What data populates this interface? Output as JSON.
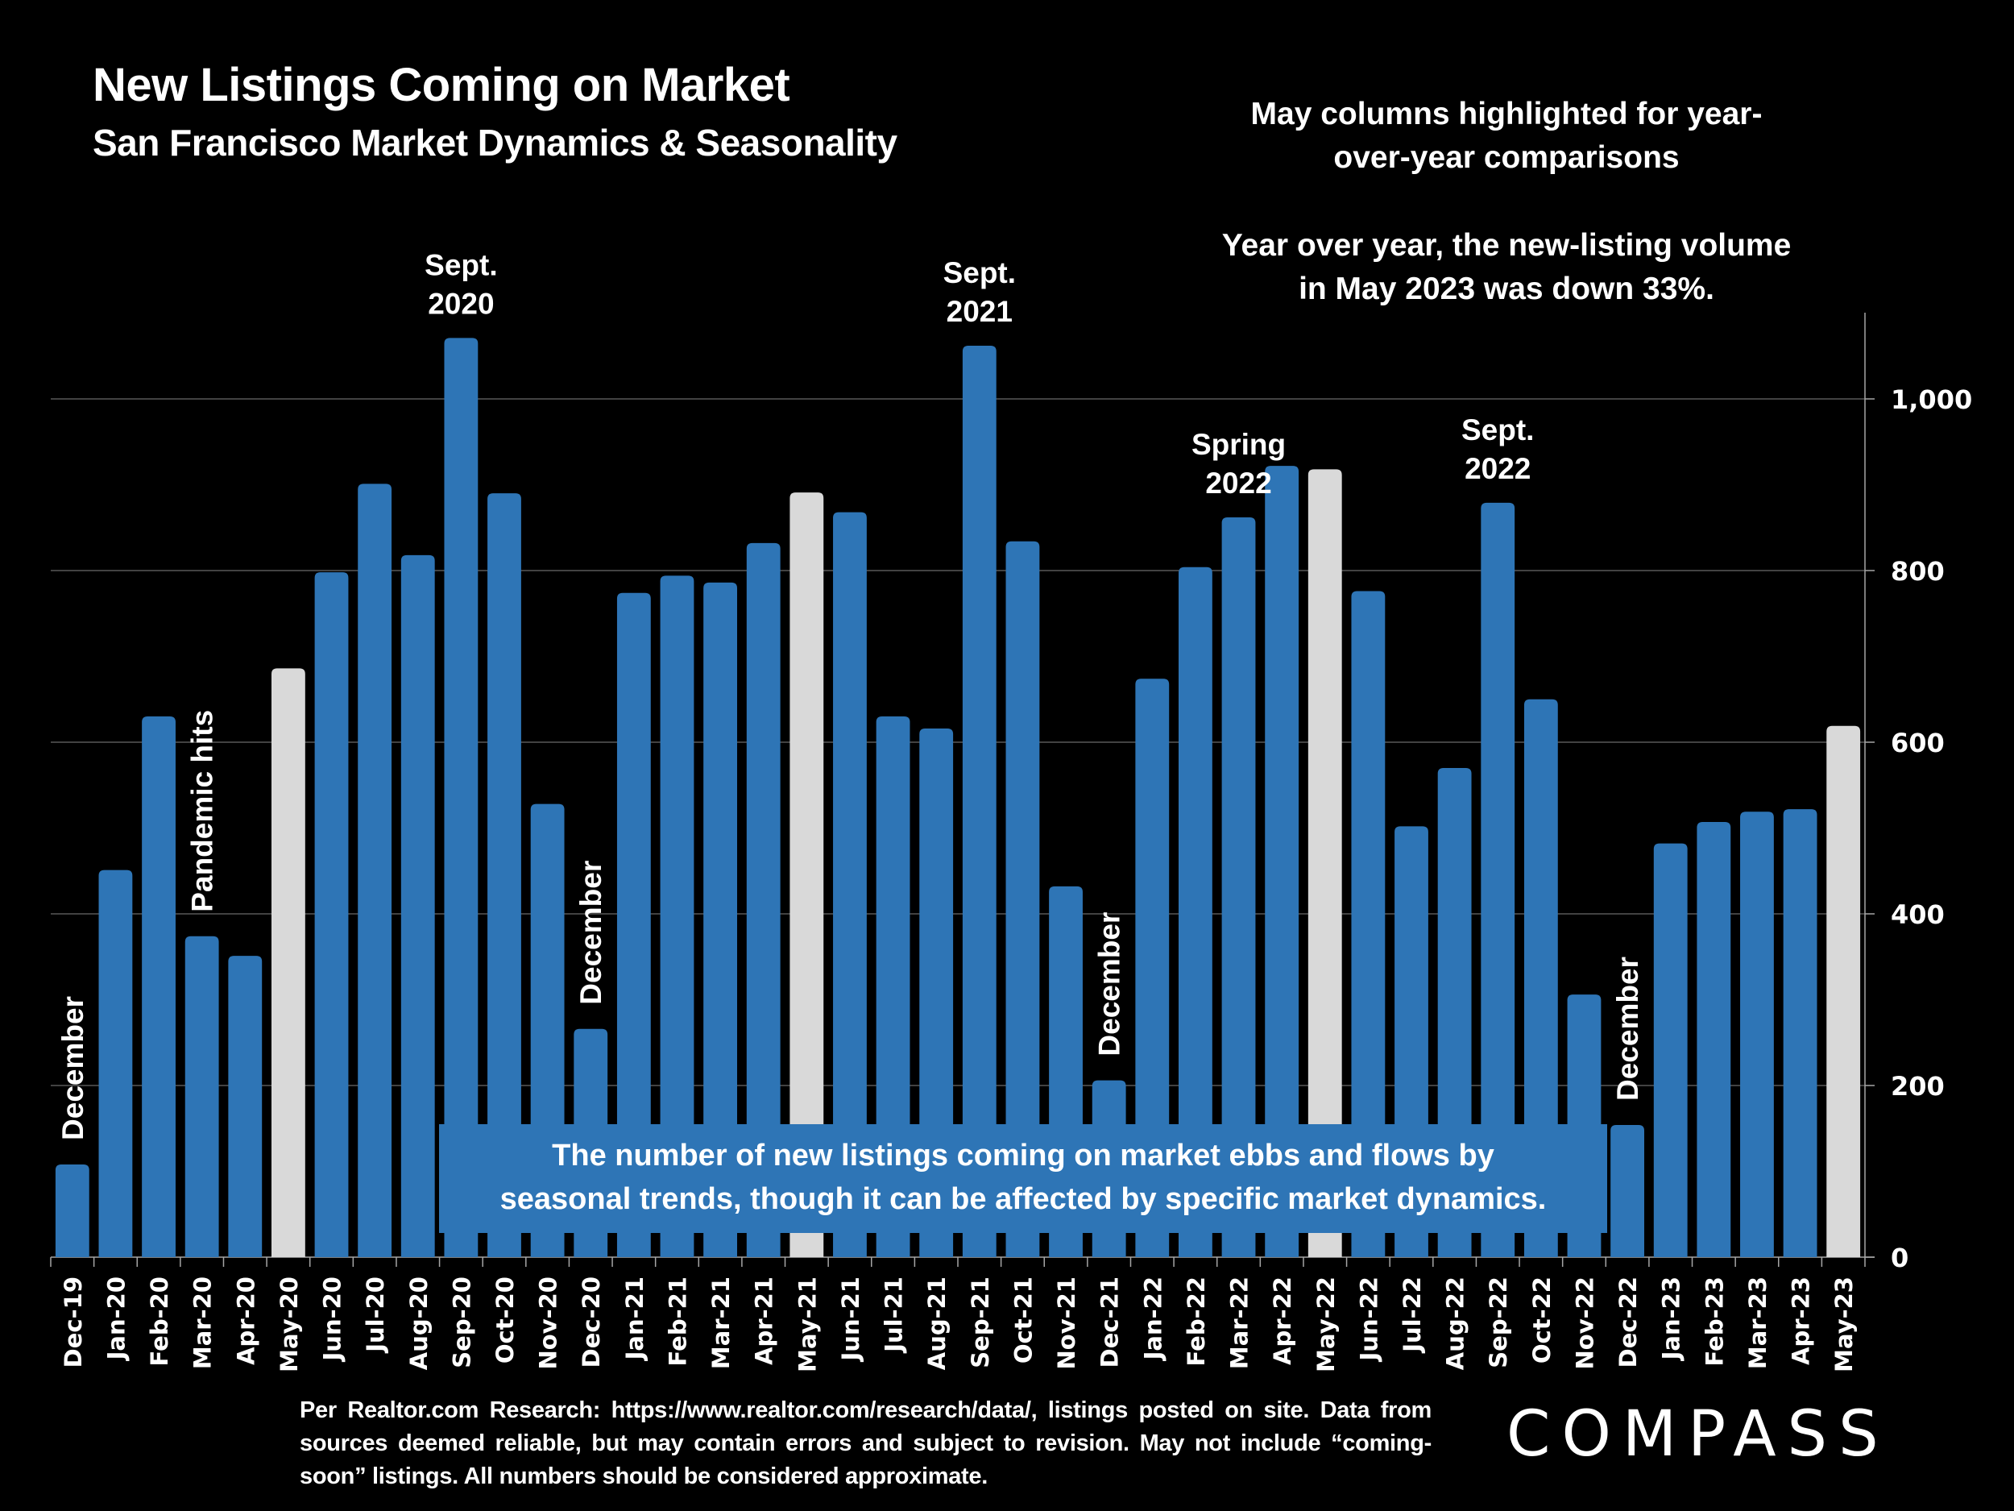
{
  "header": {
    "title": "New Listings Coming on Market",
    "subtitle": "San Francisco Market Dynamics & Seasonality"
  },
  "notes": {
    "highlight_line1": "May columns highlighted for year-",
    "highlight_line2": "over-year comparisons",
    "yoy_line1": "Year over year, the new-listing volume",
    "yoy_line2": "in May 2023 was down 33%."
  },
  "callout": {
    "line1": "The number of new listings coming on market ebbs and flows by",
    "line2": "seasonal trends, though it can be affected by specific market dynamics."
  },
  "footer": {
    "text": "Per Realtor.com Research:  https://www.realtor.com/research/data/, listings posted on site. Data from sources deemed reliable, but may contain errors and subject to revision. May not include “coming-soon” listings. All numbers should be considered approximate."
  },
  "logo": {
    "text": "COMPASS"
  },
  "colors": {
    "bar": "#2E75B6",
    "highlight": "#D9D9D9",
    "grid": "#595959",
    "axis": "#A6A6A6",
    "background": "#000000",
    "text": "#FFFFFF"
  },
  "chart_data": {
    "type": "bar",
    "title": "New Listings Coming on Market",
    "subtitle": "San Francisco Market Dynamics & Seasonality",
    "xlabel": "",
    "ylabel": "",
    "y_axis_side": "right",
    "ylim": [
      0,
      1100
    ],
    "yticks": [
      0,
      200,
      400,
      600,
      800,
      1000
    ],
    "ytick_labels": [
      "0",
      "200",
      "400",
      "600",
      "800",
      "1,000"
    ],
    "grid": true,
    "legend": "none",
    "categories": [
      "Dec-19",
      "Jan-20",
      "Feb-20",
      "Mar-20",
      "Apr-20",
      "May-20",
      "Jun-20",
      "Jul-20",
      "Aug-20",
      "Sep-20",
      "Oct-20",
      "Nov-20",
      "Dec-20",
      "Jan-21",
      "Feb-21",
      "Mar-21",
      "Apr-21",
      "May-21",
      "Jun-21",
      "Jul-21",
      "Aug-21",
      "Sep-21",
      "Oct-21",
      "Nov-21",
      "Dec-21",
      "Jan-22",
      "Feb-22",
      "Mar-22",
      "Apr-22",
      "May-22",
      "Jun-22",
      "Jul-22",
      "Aug-22",
      "Sep-22",
      "Oct-22",
      "Nov-22",
      "Dec-22",
      "Jan-23",
      "Feb-23",
      "Mar-23",
      "Apr-23",
      "May-23"
    ],
    "values": [
      108,
      451,
      630,
      374,
      351,
      686,
      798,
      901,
      818,
      1071,
      890,
      528,
      266,
      774,
      794,
      786,
      832,
      891,
      868,
      630,
      616,
      1062,
      834,
      432,
      206,
      674,
      804,
      862,
      922,
      918,
      776,
      502,
      570,
      879,
      650,
      306,
      154,
      482,
      507,
      519,
      522,
      619
    ],
    "highlighted": [
      "May-20",
      "May-21",
      "May-22",
      "May-23"
    ],
    "annotations": [
      {
        "text": "December",
        "category": "Dec-19",
        "orientation": "vertical"
      },
      {
        "text": "Pandemic hits",
        "category": "Mar-20",
        "orientation": "vertical"
      },
      {
        "text": "Sept.\n2020",
        "category": "Sep-20",
        "orientation": "horizontal"
      },
      {
        "text": "December",
        "category": "Dec-20",
        "orientation": "vertical"
      },
      {
        "text": "Sept.\n2021",
        "category": "Sep-21",
        "orientation": "horizontal"
      },
      {
        "text": "December",
        "category": "Dec-21",
        "orientation": "vertical"
      },
      {
        "text": "Spring\n2022",
        "category": "Mar-22",
        "orientation": "horizontal"
      },
      {
        "text": "Sept.\n2022",
        "category": "Sep-22",
        "orientation": "horizontal"
      },
      {
        "text": "December",
        "category": "Dec-22",
        "orientation": "vertical"
      }
    ]
  }
}
